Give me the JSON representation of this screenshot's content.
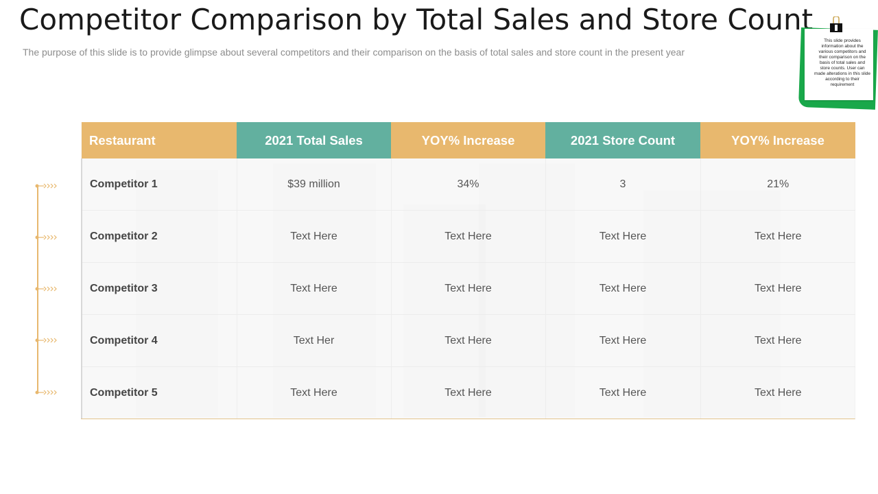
{
  "slide": {
    "title": "Competitor Comparison by Total Sales and Store Count",
    "subtitle": "The purpose of this slide is to provide glimpse about several competitors and their comparison on the basis of total sales and store count in the present year",
    "note": "This slide provides information about the various competitors and their comparison on the basis of total sales and store counts. User can made alterations in this slide according to their requirement"
  },
  "colors": {
    "gold": "#e8b86e",
    "teal": "#62b09f",
    "note_green": "#19a84a"
  },
  "icons": {
    "binder_clip": "binder-clip-icon",
    "row_marker": "chevron-arrows-icon"
  },
  "table": {
    "headers": [
      "Restaurant",
      "2021 Total Sales",
      "YOY% Increase",
      "2021 Store Count",
      "YOY% Increase"
    ],
    "rows": [
      [
        "Competitor 1",
        "$39 million",
        "34%",
        "3",
        "21%"
      ],
      [
        "Competitor 2",
        "Text Here",
        "Text Here",
        "Text Here",
        "Text Here"
      ],
      [
        "Competitor 3",
        "Text Here",
        "Text Here",
        "Text Here",
        "Text Here"
      ],
      [
        "Competitor 4",
        "Text Her",
        "Text Here",
        "Text Here",
        "Text Here"
      ],
      [
        "Competitor 5",
        "Text Here",
        "Text Here",
        "Text Here",
        "Text Here"
      ]
    ]
  }
}
